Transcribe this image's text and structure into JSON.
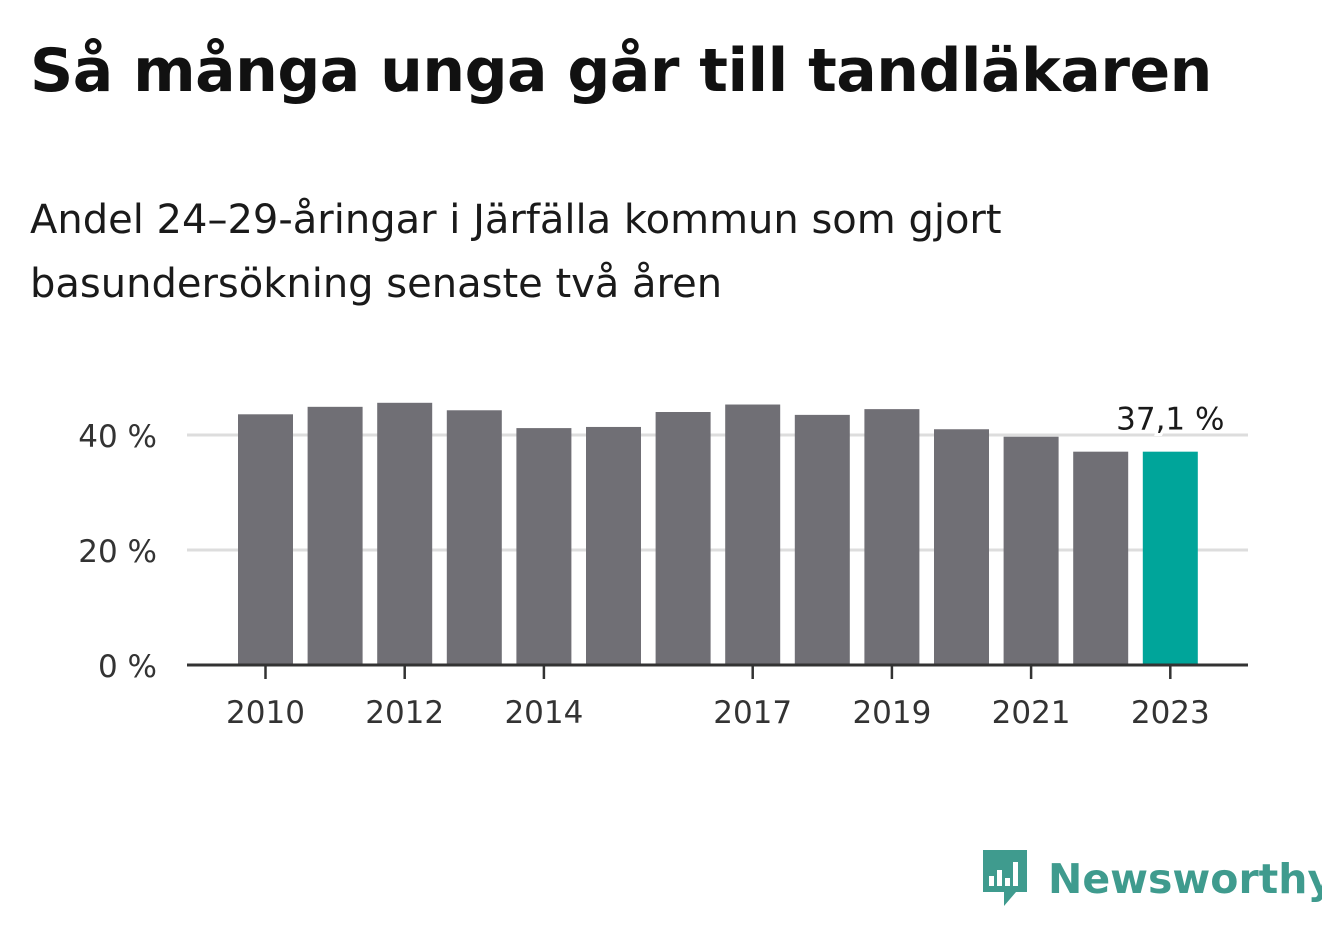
{
  "header": {
    "title": "Så många unga går till tandläkaren",
    "subtitle": "Andel 24–29-åringar i Järfälla kommun som gjort basundersökning senaste två åren"
  },
  "brand": {
    "name": "Newsworthy",
    "logo_icon": "bar-chart-speech-bubble-icon",
    "color": "#3f9b8e"
  },
  "chart_data": {
    "type": "bar",
    "x": [
      2010,
      2011,
      2012,
      2013,
      2014,
      2015,
      2016,
      2017,
      2018,
      2019,
      2020,
      2021,
      2022,
      2023
    ],
    "x_tick_labels": [
      "2010",
      "",
      "2012",
      "",
      "2014",
      "",
      "",
      "2017",
      "",
      "2019",
      "",
      "2021",
      "",
      "2023"
    ],
    "values": [
      43.6,
      44.9,
      45.6,
      44.3,
      41.2,
      41.4,
      44.0,
      45.3,
      43.5,
      44.5,
      41.0,
      39.7,
      37.1,
      37.1
    ],
    "ylim": [
      0,
      46
    ],
    "y_ticks": [
      0,
      20,
      40
    ],
    "y_tick_labels": [
      "0 %",
      "20 %",
      "40 %"
    ],
    "grid": true,
    "highlight_index": 13,
    "value_label": "37,1 %",
    "colors": {
      "bar": "#706f75",
      "highlight": "#00a59a",
      "grid": "#dddddd",
      "axis": "#333333",
      "tick_text": "#333333"
    }
  }
}
